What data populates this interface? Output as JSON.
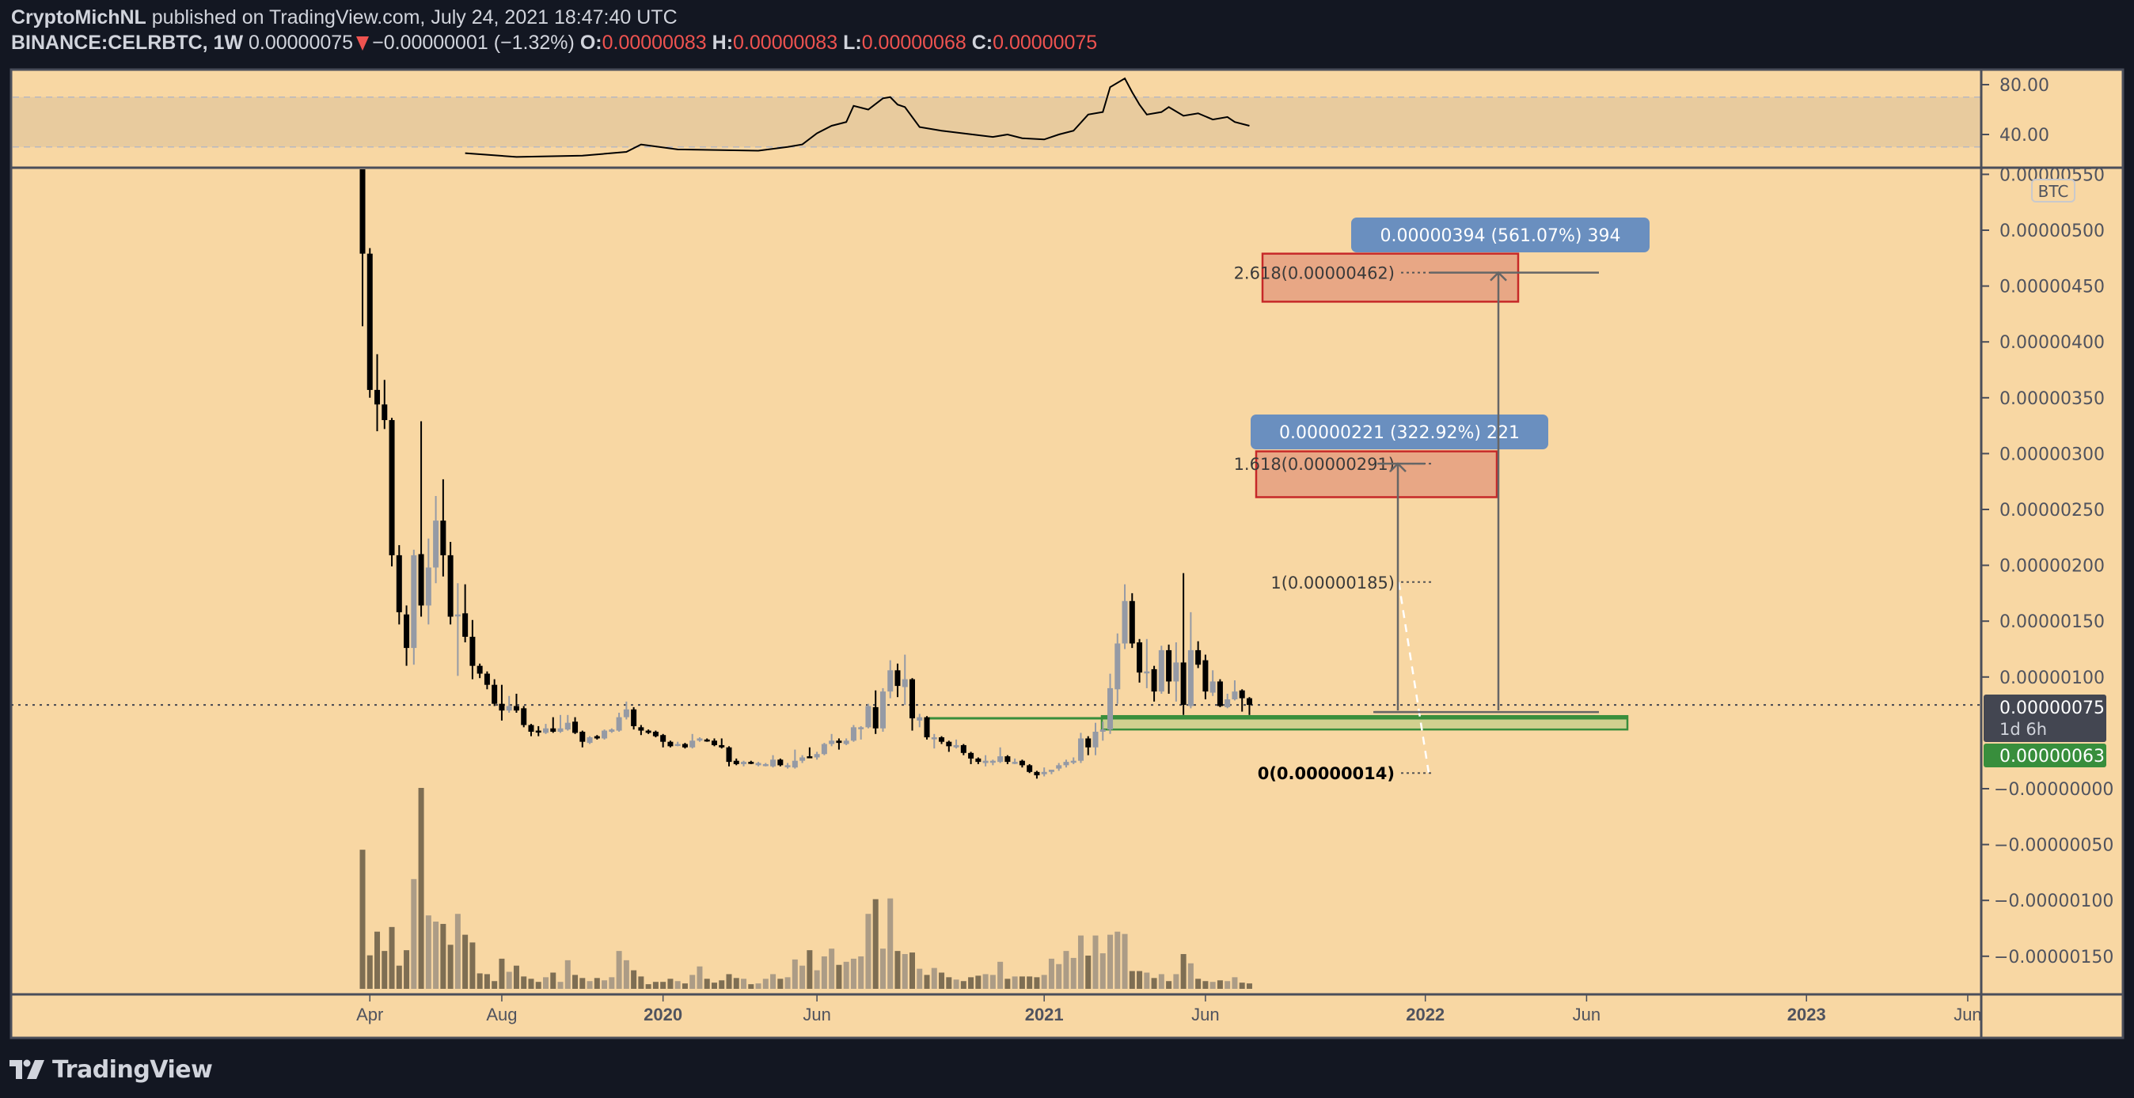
{
  "header": {
    "author": "CryptoMichNL",
    "published_text": "published on TradingView.com, July 24, 2021 18:47:40 UTC",
    "symbol": "BINANCE:CELRBTC, 1W",
    "last": "0.00000075",
    "change": "−0.00000001 (−1.32%)",
    "o_label": "O:",
    "o": "0.00000083",
    "h_label": "H:",
    "h": "0.00000083",
    "l_label": "L:",
    "l": "0.00000068",
    "c_label": "C:",
    "c": "0.00000075",
    "direction_icon": "triangle-down-icon"
  },
  "colors": {
    "background": "#f8d7a3",
    "frame": "#131722",
    "up_candle": "#959aa5",
    "down_candle": "#000000",
    "up_volume": "#ac9c86",
    "down_volume": "#7e6e53",
    "rsi_band": "#e8cb9e",
    "green_zone": "#388e3c",
    "target_box": "#e8a785",
    "target_border": "#c62828",
    "measure_label": "#6a8fbf",
    "price_badge": "#434651"
  },
  "price_axis": {
    "unit_badge": "BTC",
    "labels": [
      "0.00000550",
      "0.00000500",
      "0.00000450",
      "0.00000400",
      "0.00000350",
      "0.00000300",
      "0.00000250",
      "0.00000200",
      "0.00000150",
      "0.00000100",
      "−0.00000000",
      "−0.00000050",
      "−0.00000100",
      "−0.00000150"
    ],
    "values_sat": [
      550,
      500,
      450,
      400,
      350,
      300,
      250,
      200,
      150,
      100,
      0,
      -50,
      -100,
      -150
    ],
    "current_price": "0.00000075",
    "current_price_sat": 75,
    "countdown": "1d 6h",
    "line_price": "0.00000063",
    "line_price_sat": 63
  },
  "rsi_axis": {
    "labels": [
      "80.00",
      "40.00"
    ],
    "values": [
      80,
      40
    ],
    "band": [
      30,
      70
    ]
  },
  "time_axis": {
    "labels": [
      "Apr",
      "Aug",
      "2020",
      "Jun",
      "2021",
      "Jun",
      "2022",
      "Jun",
      "2023",
      "Jun"
    ],
    "week_index": [
      1,
      19,
      41,
      62,
      93,
      115,
      145,
      167,
      197,
      219
    ]
  },
  "chart_data": {
    "type": "candlestick",
    "symbol": "BINANCE:CELRBTC",
    "interval": "1W",
    "unit": "satoshi (1e-8 BTC)",
    "ohlc": [
      [
        620,
        640,
        414,
        479
      ],
      [
        479,
        484,
        350,
        357
      ],
      [
        357,
        389,
        320,
        344
      ],
      [
        344,
        366,
        322,
        330
      ],
      [
        330,
        332,
        199,
        209
      ],
      [
        209,
        218,
        147,
        158
      ],
      [
        156,
        164,
        110,
        126
      ],
      [
        126,
        214,
        111,
        209
      ],
      [
        210,
        329,
        154,
        164
      ],
      [
        164,
        224,
        147,
        198
      ],
      [
        198,
        262,
        184,
        240
      ],
      [
        240,
        277,
        190,
        209
      ],
      [
        209,
        221,
        147,
        154
      ],
      [
        155,
        184,
        101,
        156
      ],
      [
        157,
        183,
        131,
        136
      ],
      [
        136,
        151,
        98,
        110
      ],
      [
        110,
        112,
        99,
        103
      ],
      [
        103,
        105,
        89,
        93
      ],
      [
        93,
        98,
        74,
        76
      ],
      [
        76,
        93,
        61,
        70
      ],
      [
        70,
        83,
        68,
        74
      ],
      [
        74,
        85,
        68,
        70
      ],
      [
        72,
        74,
        55,
        57
      ],
      [
        57,
        58,
        47,
        51
      ],
      [
        52,
        56,
        47,
        51
      ],
      [
        50,
        58,
        49,
        54
      ],
      [
        54,
        64,
        50,
        51
      ],
      [
        51,
        66,
        50,
        54
      ],
      [
        53,
        66,
        52,
        59
      ],
      [
        60,
        64,
        49,
        50
      ],
      [
        51,
        52,
        37,
        42
      ],
      [
        41,
        47,
        40,
        46
      ],
      [
        47,
        48,
        44,
        45
      ],
      [
        45,
        53,
        44,
        52
      ],
      [
        51,
        54,
        50,
        53
      ],
      [
        52,
        68,
        51,
        64
      ],
      [
        64,
        78,
        62,
        71
      ],
      [
        71,
        73,
        53,
        56
      ],
      [
        55,
        57,
        48,
        52
      ],
      [
        52,
        53,
        49,
        50
      ],
      [
        51,
        52,
        46,
        47
      ],
      [
        48,
        49,
        37,
        42
      ],
      [
        42,
        43,
        37,
        38
      ],
      [
        39,
        42,
        38,
        40
      ],
      [
        40,
        41,
        36,
        37
      ],
      [
        37,
        49,
        36,
        43
      ],
      [
        43,
        46,
        42,
        45
      ],
      [
        44,
        45,
        42,
        43
      ],
      [
        43,
        45,
        38,
        39
      ],
      [
        39,
        45,
        36,
        37
      ],
      [
        37,
        38,
        20,
        24
      ],
      [
        25,
        27,
        21,
        22
      ],
      [
        22,
        25,
        20,
        24
      ],
      [
        24,
        25,
        22,
        23
      ],
      [
        21,
        24,
        20,
        23
      ],
      [
        21,
        23,
        20,
        22
      ],
      [
        20,
        30,
        19,
        26
      ],
      [
        26,
        27,
        20,
        21
      ],
      [
        20,
        23,
        18,
        21
      ],
      [
        19,
        35,
        18,
        25
      ],
      [
        25,
        30,
        23,
        28
      ],
      [
        29,
        37,
        28,
        28
      ],
      [
        28,
        33,
        26,
        31
      ],
      [
        31,
        41,
        30,
        40
      ],
      [
        40,
        49,
        38,
        43
      ],
      [
        43,
        45,
        35,
        41
      ],
      [
        40,
        45,
        39,
        43
      ],
      [
        43,
        57,
        42,
        55
      ],
      [
        54,
        56,
        44,
        55
      ],
      [
        55,
        76,
        54,
        74
      ],
      [
        73,
        88,
        49,
        54
      ],
      [
        54,
        90,
        51,
        87
      ],
      [
        87,
        115,
        81,
        106
      ],
      [
        106,
        112,
        82,
        92
      ],
      [
        91,
        120,
        75,
        98
      ],
      [
        98,
        99,
        52,
        63
      ],
      [
        61,
        67,
        55,
        64
      ],
      [
        64,
        65,
        44,
        46
      ],
      [
        46,
        49,
        36,
        46
      ],
      [
        46,
        47,
        40,
        42
      ],
      [
        42,
        43,
        33,
        38
      ],
      [
        37,
        44,
        36,
        39
      ],
      [
        39,
        40,
        30,
        32
      ],
      [
        32,
        33,
        22,
        27
      ],
      [
        27,
        28,
        22,
        24
      ],
      [
        23,
        30,
        20,
        25
      ],
      [
        24,
        26,
        21,
        25
      ],
      [
        24,
        37,
        23,
        29
      ],
      [
        29,
        30,
        22,
        24
      ],
      [
        24,
        27,
        22,
        24
      ],
      [
        25,
        26,
        19,
        21
      ],
      [
        21,
        22,
        14,
        15
      ],
      [
        15,
        16,
        9,
        12
      ],
      [
        13,
        19,
        11,
        15
      ],
      [
        15,
        17,
        13,
        17
      ],
      [
        18,
        23,
        16,
        21
      ],
      [
        21,
        26,
        19,
        24
      ],
      [
        24,
        28,
        22,
        25
      ],
      [
        25,
        50,
        23,
        45
      ],
      [
        45,
        47,
        30,
        37
      ],
      [
        37,
        59,
        30,
        51
      ],
      [
        51,
        60,
        43,
        53
      ],
      [
        53,
        103,
        49,
        90
      ],
      [
        89,
        139,
        76,
        130
      ],
      [
        130,
        183,
        125,
        168
      ],
      [
        168,
        175,
        126,
        130
      ],
      [
        131,
        134,
        95,
        104
      ],
      [
        104,
        134,
        90,
        105
      ],
      [
        107,
        110,
        78,
        87
      ],
      [
        87,
        128,
        85,
        124
      ],
      [
        124,
        129,
        85,
        96
      ],
      [
        96,
        131,
        78,
        113
      ],
      [
        113,
        193,
        66,
        75
      ],
      [
        74,
        158,
        72,
        124
      ],
      [
        124,
        132,
        108,
        111
      ],
      [
        115,
        120,
        80,
        87
      ],
      [
        86,
        106,
        83,
        96
      ],
      [
        96,
        98,
        73,
        74
      ],
      [
        73,
        85,
        72,
        80
      ],
      [
        80,
        97,
        79,
        87
      ],
      [
        88,
        89,
        69,
        81
      ],
      [
        81,
        82,
        66,
        75
      ]
    ],
    "volume_relative": [
      540,
      130,
      222,
      147,
      240,
      90,
      150,
      426,
      780,
      285,
      261,
      252,
      171,
      291,
      210,
      180,
      60,
      57,
      30,
      117,
      66,
      90,
      48,
      39,
      27,
      45,
      63,
      27,
      111,
      54,
      42,
      30,
      42,
      33,
      45,
      147,
      111,
      72,
      48,
      18,
      27,
      27,
      39,
      30,
      21,
      54,
      87,
      39,
      24,
      33,
      57,
      42,
      39,
      18,
      21,
      39,
      57,
      39,
      45,
      114,
      90,
      150,
      72,
      126,
      156,
      93,
      105,
      117,
      126,
      291,
      348,
      156,
      351,
      147,
      135,
      141,
      78,
      54,
      81,
      63,
      45,
      36,
      30,
      45,
      51,
      57,
      54,
      105,
      39,
      48,
      48,
      48,
      45,
      54,
      117,
      96,
      147,
      120,
      207,
      129,
      207,
      138,
      210,
      222,
      213,
      69,
      69,
      63,
      42,
      57,
      30,
      57,
      135,
      99,
      39,
      30,
      27,
      33,
      30,
      45,
      24,
      21
    ],
    "rsi_points": [
      [
        14,
        25
      ],
      [
        21,
        22
      ],
      [
        30,
        23
      ],
      [
        36,
        26
      ],
      [
        38,
        32
      ],
      [
        43,
        28
      ],
      [
        54,
        27
      ],
      [
        58,
        30
      ],
      [
        60,
        32
      ],
      [
        62,
        41
      ],
      [
        64,
        47
      ],
      [
        66,
        50
      ],
      [
        67,
        63
      ],
      [
        69,
        60
      ],
      [
        71,
        69
      ],
      [
        72,
        70
      ],
      [
        73,
        64
      ],
      [
        74,
        62
      ],
      [
        76,
        46
      ],
      [
        79,
        43
      ],
      [
        86,
        38
      ],
      [
        88,
        40
      ],
      [
        90,
        37
      ],
      [
        93,
        36
      ],
      [
        95,
        40
      ],
      [
        97,
        43
      ],
      [
        99,
        56
      ],
      [
        101,
        58
      ],
      [
        102,
        78
      ],
      [
        104,
        85
      ],
      [
        105,
        74
      ],
      [
        106,
        64
      ],
      [
        107,
        56
      ],
      [
        109,
        58
      ],
      [
        110,
        62
      ],
      [
        112,
        55
      ],
      [
        114,
        57
      ],
      [
        116,
        52
      ],
      [
        118,
        54
      ],
      [
        119,
        50
      ],
      [
        121,
        47
      ]
    ],
    "support_zone_sat": [
      53,
      65
    ],
    "support_line_sat": 63,
    "target_zones_sat": [
      [
        261,
        302
      ],
      [
        436,
        479
      ]
    ],
    "fib_levels": [
      {
        "label": "2.618(0.00000462)",
        "price_sat": 462
      },
      {
        "label": "1.618(0.00000291)",
        "price_sat": 291
      },
      {
        "label": "1(0.00000185)",
        "price_sat": 185
      },
      {
        "label": "0(0.00000014)",
        "price_sat": 14
      }
    ],
    "measurements": [
      {
        "label": "0.00000221 (322.92%) 221",
        "from_sat": 70,
        "to_sat": 291
      },
      {
        "label": "0.00000394 (561.07%) 394",
        "from_sat": 70,
        "to_sat": 462
      }
    ]
  },
  "footer": {
    "logo_text": "TradingView"
  }
}
